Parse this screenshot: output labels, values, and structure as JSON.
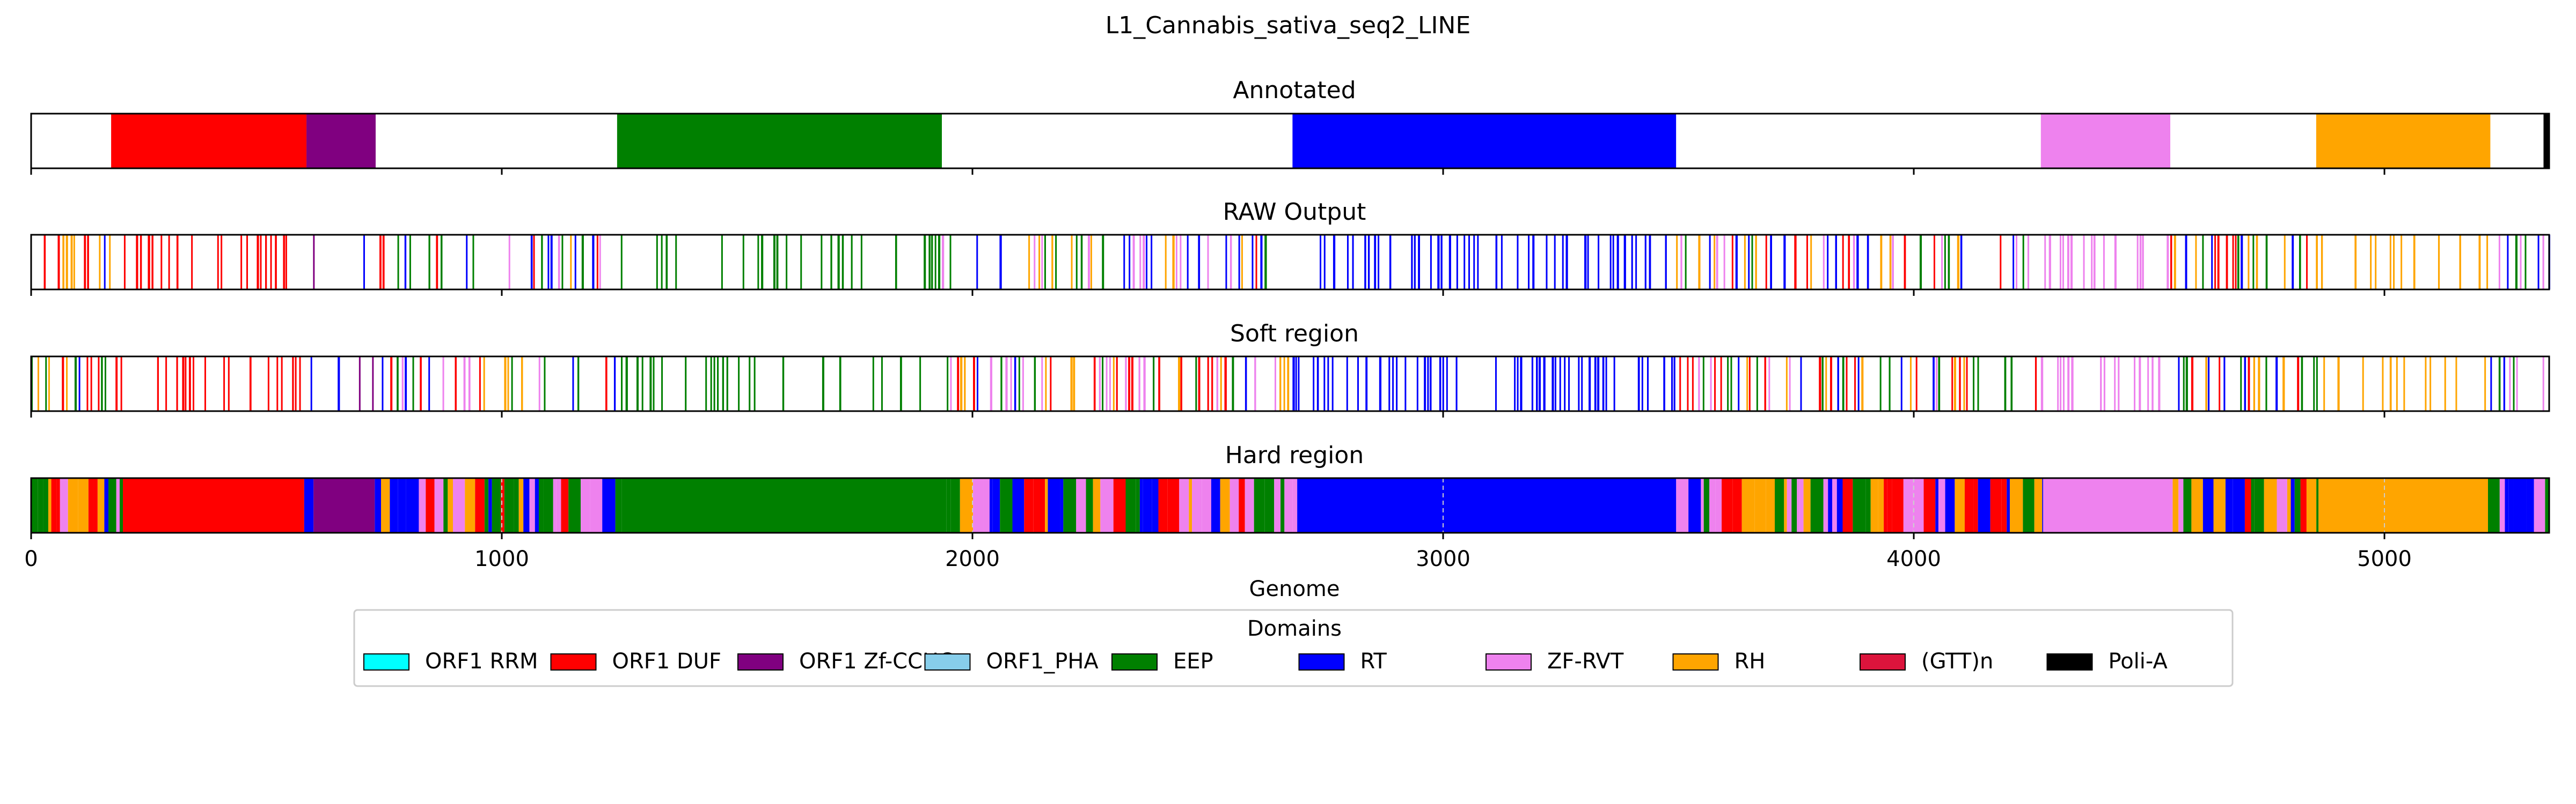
{
  "chart_data": {
    "type": "domain-track",
    "title": "L1_Cannabis_sativa_seq2_LINE",
    "xlabel": "Genome",
    "xlim": [
      0,
      5350
    ],
    "xticks": [
      0,
      1000,
      2000,
      3000,
      4000,
      5000
    ],
    "xtick_labels": [
      "0",
      "1000",
      "2000",
      "3000",
      "4000",
      "5000"
    ],
    "legend_title": "Domains",
    "legend_position": "bottom-center",
    "legend": [
      {
        "key": "orf1_rrm",
        "label": "ORF1 RRM",
        "color": "#00ffff"
      },
      {
        "key": "orf1_duf",
        "label": "ORF1 DUF",
        "color": "#ff0000"
      },
      {
        "key": "orf1_zf",
        "label": "ORF1 Zf-CCHC",
        "color": "#800080"
      },
      {
        "key": "orf1_pha",
        "label": "ORF1_PHA",
        "color": "#87ceeb"
      },
      {
        "key": "eep",
        "label": "EEP",
        "color": "#008000"
      },
      {
        "key": "rt",
        "label": "RT",
        "color": "#0000ff"
      },
      {
        "key": "zf_rvt",
        "label": "ZF-RVT",
        "color": "#ee82ee"
      },
      {
        "key": "rh",
        "label": "RH",
        "color": "#ffa500"
      },
      {
        "key": "gtt",
        "label": "(GTT)n",
        "color": "#dc143c"
      },
      {
        "key": "polia",
        "label": "Poli-A",
        "color": "#000000"
      }
    ],
    "tracks": [
      {
        "key": "annotated",
        "title": "Annotated",
        "segments": [
          {
            "domain": "orf1_duf",
            "start": 170,
            "end": 585
          },
          {
            "domain": "orf1_zf",
            "start": 585,
            "end": 732
          },
          {
            "domain": "eep",
            "start": 1245,
            "end": 1935
          },
          {
            "domain": "rt",
            "start": 2680,
            "end": 3495
          },
          {
            "domain": "zf_rvt",
            "start": 4270,
            "end": 4545
          },
          {
            "domain": "rh",
            "start": 4855,
            "end": 5225
          },
          {
            "domain": "polia",
            "start": 5338,
            "end": 5350
          }
        ]
      },
      {
        "key": "raw",
        "title": "RAW Output",
        "regions": [
          {
            "start": 0,
            "end": 170,
            "domains": [
              "rt",
              "rh",
              "eep",
              "orf1_duf"
            ],
            "density": 0.55
          },
          {
            "start": 170,
            "end": 585,
            "domains": [
              "orf1_duf"
            ],
            "density": 0.35
          },
          {
            "start": 585,
            "end": 740,
            "domains": [
              "orf1_zf",
              "rt"
            ],
            "density": 0.15
          },
          {
            "start": 740,
            "end": 1245,
            "domains": [
              "eep",
              "rt",
              "rh",
              "zf_rvt",
              "orf1_duf"
            ],
            "density": 0.4
          },
          {
            "start": 1245,
            "end": 1935,
            "domains": [
              "eep"
            ],
            "density": 0.35
          },
          {
            "start": 1935,
            "end": 2680,
            "domains": [
              "rt",
              "eep",
              "rh",
              "zf_rvt",
              "orf1_duf"
            ],
            "density": 0.5
          },
          {
            "start": 2680,
            "end": 3495,
            "domains": [
              "rt"
            ],
            "density": 0.45
          },
          {
            "start": 3495,
            "end": 4270,
            "domains": [
              "rt",
              "eep",
              "rh",
              "zf_rvt",
              "orf1_duf"
            ],
            "density": 0.5
          },
          {
            "start": 4270,
            "end": 4545,
            "domains": [
              "zf_rvt"
            ],
            "density": 0.3
          },
          {
            "start": 4545,
            "end": 4855,
            "domains": [
              "rt",
              "rh",
              "eep",
              "orf1_duf"
            ],
            "density": 0.5
          },
          {
            "start": 4855,
            "end": 5225,
            "domains": [
              "rh"
            ],
            "density": 0.25
          },
          {
            "start": 5225,
            "end": 5350,
            "domains": [
              "rt",
              "zf_rvt",
              "eep"
            ],
            "density": 0.55
          }
        ]
      },
      {
        "key": "soft",
        "title": "Soft region",
        "regions": [
          {
            "start": 0,
            "end": 170,
            "domains": [
              "rt",
              "rh",
              "eep",
              "orf1_duf"
            ],
            "density": 0.55
          },
          {
            "start": 170,
            "end": 585,
            "domains": [
              "orf1_duf"
            ],
            "density": 0.35
          },
          {
            "start": 585,
            "end": 740,
            "domains": [
              "orf1_zf",
              "rt"
            ],
            "density": 0.15
          },
          {
            "start": 740,
            "end": 1245,
            "domains": [
              "eep",
              "rt",
              "rh",
              "zf_rvt",
              "orf1_duf"
            ],
            "density": 0.4
          },
          {
            "start": 1245,
            "end": 1935,
            "domains": [
              "eep"
            ],
            "density": 0.35
          },
          {
            "start": 1935,
            "end": 2680,
            "domains": [
              "rt",
              "eep",
              "rh",
              "zf_rvt",
              "orf1_duf"
            ],
            "density": 0.5
          },
          {
            "start": 2680,
            "end": 3495,
            "domains": [
              "rt"
            ],
            "density": 0.45
          },
          {
            "start": 3495,
            "end": 4270,
            "domains": [
              "rt",
              "eep",
              "rh",
              "zf_rvt",
              "orf1_duf"
            ],
            "density": 0.5
          },
          {
            "start": 4270,
            "end": 4545,
            "domains": [
              "zf_rvt"
            ],
            "density": 0.3
          },
          {
            "start": 4545,
            "end": 4855,
            "domains": [
              "rt",
              "rh",
              "eep",
              "orf1_duf"
            ],
            "density": 0.5
          },
          {
            "start": 4855,
            "end": 5225,
            "domains": [
              "rh"
            ],
            "density": 0.25
          },
          {
            "start": 5225,
            "end": 5350,
            "domains": [
              "rt",
              "zf_rvt",
              "eep"
            ],
            "density": 0.55
          }
        ]
      },
      {
        "key": "hard",
        "title": "Hard region",
        "segments": [
          {
            "domain": "orf1_duf",
            "start": 195,
            "end": 580
          },
          {
            "domain": "orf1_zf",
            "start": 600,
            "end": 730
          },
          {
            "domain": "eep",
            "start": 1255,
            "end": 1945
          },
          {
            "domain": "rt",
            "start": 2690,
            "end": 3495
          },
          {
            "domain": "zf_rvt",
            "start": 4275,
            "end": 4550
          },
          {
            "domain": "rh",
            "start": 4860,
            "end": 5220
          }
        ],
        "mixed_regions": [
          {
            "start": 0,
            "end": 195,
            "domains": [
              "rt",
              "rh",
              "eep",
              "zf_rvt",
              "orf1_duf"
            ]
          },
          {
            "start": 580,
            "end": 600,
            "domains": [
              "rt"
            ]
          },
          {
            "start": 730,
            "end": 1255,
            "domains": [
              "rt",
              "eep",
              "rh",
              "orf1_duf",
              "zf_rvt"
            ]
          },
          {
            "start": 1945,
            "end": 2690,
            "domains": [
              "rt",
              "eep",
              "rh",
              "zf_rvt",
              "orf1_duf"
            ]
          },
          {
            "start": 3495,
            "end": 4275,
            "domains": [
              "rt",
              "eep",
              "rh",
              "zf_rvt",
              "orf1_duf"
            ]
          },
          {
            "start": 4550,
            "end": 4860,
            "domains": [
              "rt",
              "rh",
              "eep",
              "orf1_duf",
              "zf_rvt"
            ]
          },
          {
            "start": 5220,
            "end": 5350,
            "domains": [
              "rt",
              "zf_rvt",
              "eep"
            ]
          }
        ]
      }
    ]
  }
}
